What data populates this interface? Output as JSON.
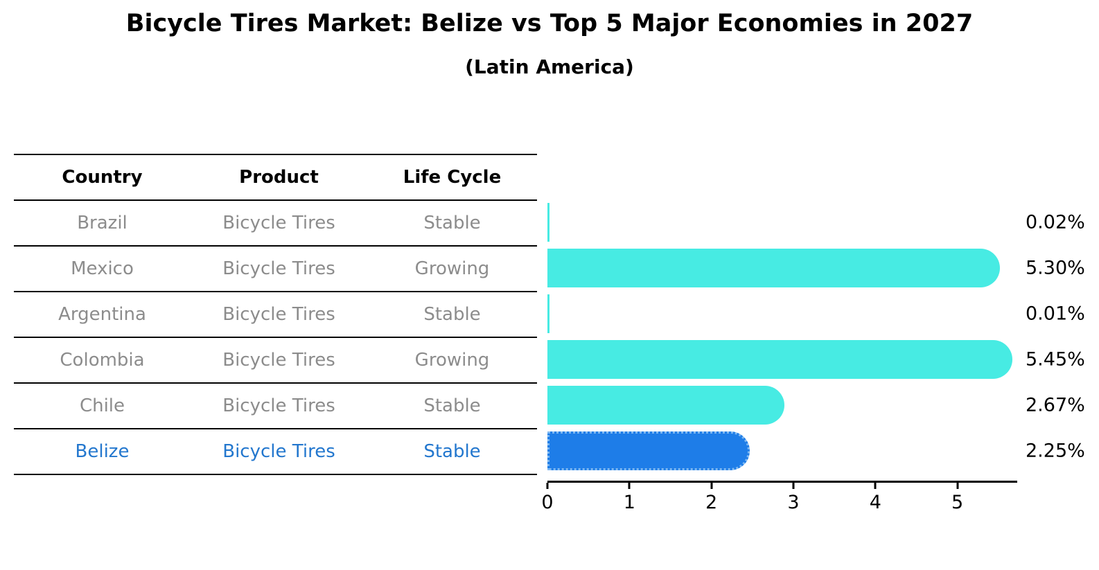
{
  "header": {
    "title": "Bicycle Tires Market: Belize vs Top 5 Major Economies in 2027",
    "subtitle": "(Latin America)"
  },
  "table": {
    "columns": [
      "Country",
      "Product",
      "Life Cycle"
    ],
    "rows": [
      {
        "country": "Brazil",
        "product": "Bicycle Tires",
        "life_cycle": "Stable",
        "highlight": false
      },
      {
        "country": "Mexico",
        "product": "Bicycle Tires",
        "life_cycle": "Growing",
        "highlight": false
      },
      {
        "country": "Argentina",
        "product": "Bicycle Tires",
        "life_cycle": "Stable",
        "highlight": false
      },
      {
        "country": "Colombia",
        "product": "Bicycle Tires",
        "life_cycle": "Growing",
        "highlight": false
      },
      {
        "country": "Chile",
        "product": "Bicycle Tires",
        "life_cycle": "Stable",
        "highlight": false
      },
      {
        "country": "Belize",
        "product": "Bicycle Tires",
        "life_cycle": "Stable",
        "highlight": true
      }
    ]
  },
  "chart_data": {
    "type": "bar",
    "orientation": "horizontal",
    "title": "Bicycle Tires Market: Belize vs Top 5 Major Economies in 2027",
    "subtitle": "(Latin America)",
    "categories": [
      "Brazil",
      "Mexico",
      "Argentina",
      "Colombia",
      "Chile",
      "Belize"
    ],
    "values": [
      0.02,
      5.3,
      0.01,
      5.45,
      2.67,
      2.25
    ],
    "value_labels": [
      "0.02%",
      "5.30%",
      "0.01%",
      "5.45%",
      "2.67%",
      "2.25%"
    ],
    "x_ticks": [
      "0",
      "1",
      "2",
      "3",
      "4",
      "5"
    ],
    "xlim": [
      0,
      5.73
    ],
    "grid": false,
    "legend": false,
    "highlight_category": "Belize",
    "colors": {
      "bar": "#47ebe3",
      "highlight_bar": "#1e7de8",
      "highlight_text": "#2377ce",
      "row_text": "#8c8c8c",
      "axis": "#000000"
    }
  }
}
